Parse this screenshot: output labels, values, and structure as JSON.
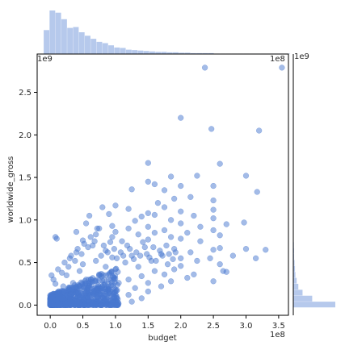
{
  "chart_data": {
    "type": "scatter",
    "title": "",
    "xlabel": "budget",
    "ylabel": "worldwide_gross",
    "x_units_label": "1e8",
    "y_units_label": "1e9",
    "xlim": [
      -0.2,
      3.65
    ],
    "ylim": [
      -0.12,
      2.95
    ],
    "xticks": [
      0.0,
      0.5,
      1.0,
      1.5,
      2.0,
      2.5,
      3.0,
      3.5
    ],
    "xtick_labels": [
      "0.0",
      "0.5",
      "1.0",
      "1.5",
      "2.0",
      "2.5",
      "3.0",
      "3.5"
    ],
    "yticks": [
      0.0,
      0.5,
      1.0,
      1.5,
      2.0,
      2.5
    ],
    "ytick_labels": [
      "0.0",
      "0.5",
      "1.0",
      "1.5",
      "2.0",
      "2.5"
    ],
    "grid": false,
    "point_color": "#4878d0",
    "series": [
      {
        "values_note": "x in units of 1e8 (budget), y in units of 1e9 (worldwide_gross)",
        "points": [
          [
            3.55,
            2.79
          ],
          [
            2.37,
            2.79
          ],
          [
            2.0,
            2.2
          ],
          [
            2.47,
            2.07
          ],
          [
            3.2,
            2.05
          ],
          [
            1.5,
            1.67
          ],
          [
            2.6,
            1.66
          ],
          [
            3.0,
            1.52
          ],
          [
            2.25,
            1.52
          ],
          [
            1.85,
            1.51
          ],
          [
            1.5,
            1.45
          ],
          [
            1.6,
            1.42
          ],
          [
            2.5,
            1.4
          ],
          [
            2.0,
            1.4
          ],
          [
            1.25,
            1.36
          ],
          [
            1.75,
            1.35
          ],
          [
            3.17,
            1.33
          ],
          [
            1.9,
            1.25
          ],
          [
            2.15,
            1.27
          ],
          [
            2.5,
            1.23
          ],
          [
            1.65,
            1.2
          ],
          [
            1.0,
            1.17
          ],
          [
            0.8,
            1.15
          ],
          [
            1.75,
            1.15
          ],
          [
            1.2,
            1.13
          ],
          [
            2.5,
            1.12
          ],
          [
            2.0,
            1.1
          ],
          [
            1.5,
            1.08
          ],
          [
            0.9,
            1.07
          ],
          [
            1.6,
            1.06
          ],
          [
            0.6,
            1.05
          ],
          [
            2.2,
            1.05
          ],
          [
            1.4,
            1.04
          ],
          [
            2.5,
            1.02
          ],
          [
            1.85,
            1.0
          ],
          [
            1.3,
            0.99
          ],
          [
            0.55,
            0.96
          ],
          [
            2.0,
            0.96
          ],
          [
            2.7,
            0.95
          ],
          [
            2.97,
            0.97
          ],
          [
            0.95,
            0.93
          ],
          [
            1.5,
            0.92
          ],
          [
            2.3,
            0.92
          ],
          [
            0.75,
            0.9
          ],
          [
            1.2,
            0.9
          ],
          [
            1.75,
            0.88
          ],
          [
            2.5,
            0.88
          ],
          [
            0.4,
            0.86
          ],
          [
            1.0,
            0.86
          ],
          [
            1.6,
            0.85
          ],
          [
            2.1,
            0.85
          ],
          [
            0.7,
            0.83
          ],
          [
            1.35,
            0.83
          ],
          [
            2.6,
            0.82
          ],
          [
            0.95,
            0.8
          ],
          [
            1.85,
            0.8
          ],
          [
            0.08,
            0.8
          ],
          [
            0.1,
            0.78
          ],
          [
            2.0,
            0.78
          ],
          [
            1.5,
            0.77
          ],
          [
            0.5,
            0.76
          ],
          [
            1.1,
            0.75
          ],
          [
            2.3,
            0.75
          ],
          [
            3.0,
            0.66
          ],
          [
            2.6,
            0.67
          ],
          [
            2.5,
            0.65
          ],
          [
            1.9,
            0.66
          ],
          [
            0.65,
            0.7
          ],
          [
            1.45,
            0.68
          ],
          [
            0.85,
            0.64
          ],
          [
            2.15,
            0.62
          ],
          [
            1.7,
            0.6
          ],
          [
            0.4,
            0.62
          ],
          [
            1.25,
            0.58
          ],
          [
            2.8,
            0.58
          ],
          [
            3.15,
            0.55
          ],
          [
            2.45,
            0.55
          ],
          [
            2.0,
            0.55
          ],
          [
            0.95,
            0.56
          ],
          [
            0.3,
            0.55
          ],
          [
            1.55,
            0.52
          ],
          [
            2.25,
            0.52
          ],
          [
            0.7,
            0.52
          ],
          [
            1.15,
            0.5
          ],
          [
            2.6,
            0.48
          ],
          [
            1.8,
            0.48
          ],
          [
            0.5,
            0.48
          ],
          [
            2.0,
            0.46
          ],
          [
            1.35,
            0.45
          ],
          [
            0.85,
            0.45
          ],
          [
            2.65,
            0.4
          ],
          [
            2.7,
            0.39
          ],
          [
            2.5,
            0.28
          ],
          [
            2.2,
            0.36
          ],
          [
            1.9,
            0.42
          ],
          [
            3.3,
            0.65
          ],
          [
            1.6,
            0.4
          ],
          [
            1.0,
            0.42
          ],
          [
            0.45,
            0.4
          ],
          [
            1.75,
            0.36
          ],
          [
            2.1,
            0.32
          ],
          [
            1.4,
            0.34
          ],
          [
            0.75,
            0.36
          ],
          [
            1.2,
            0.3
          ],
          [
            0.25,
            0.35
          ],
          [
            1.85,
            0.28
          ],
          [
            0.55,
            0.3
          ],
          [
            1.5,
            0.26
          ],
          [
            1.05,
            0.26
          ],
          [
            0.35,
            0.26
          ],
          [
            1.7,
            0.22
          ],
          [
            0.8,
            0.22
          ],
          [
            1.3,
            0.2
          ],
          [
            0.2,
            0.22
          ],
          [
            0.6,
            0.2
          ],
          [
            1.0,
            0.18
          ],
          [
            1.5,
            0.16
          ],
          [
            0.4,
            0.17
          ],
          [
            0.9,
            0.14
          ],
          [
            0.15,
            0.15
          ],
          [
            1.2,
            0.12
          ],
          [
            0.6,
            0.12
          ],
          [
            0.3,
            0.1
          ],
          [
            0.8,
            0.09
          ],
          [
            1.4,
            0.08
          ],
          [
            0.05,
            0.09
          ],
          [
            0.5,
            0.07
          ],
          [
            1.0,
            0.06
          ],
          [
            0.2,
            0.05
          ],
          [
            0.7,
            0.04
          ],
          [
            1.25,
            0.04
          ],
          [
            0.1,
            0.03
          ],
          [
            0.4,
            0.03
          ],
          [
            0.9,
            0.02
          ],
          [
            0.02,
            0.02
          ],
          [
            0.25,
            0.01
          ],
          [
            0.6,
            0.01
          ],
          [
            0.03,
            0.0
          ],
          [
            0.15,
            0.0
          ],
          [
            0.45,
            0.0
          ],
          [
            0.02,
            0.35
          ],
          [
            0.05,
            0.3
          ],
          [
            0.08,
            0.25
          ],
          [
            0.12,
            0.42
          ],
          [
            0.18,
            0.38
          ],
          [
            0.22,
            0.5
          ],
          [
            0.28,
            0.45
          ],
          [
            0.32,
            0.58
          ],
          [
            0.38,
            0.52
          ],
          [
            0.42,
            0.66
          ],
          [
            0.48,
            0.6
          ],
          [
            0.52,
            0.72
          ],
          [
            0.58,
            0.68
          ],
          [
            0.62,
            0.8
          ],
          [
            0.68,
            0.75
          ],
          [
            0.72,
            0.9
          ],
          [
            0.78,
            0.58
          ],
          [
            0.82,
            0.7
          ],
          [
            0.88,
            0.62
          ],
          [
            0.92,
            0.74
          ],
          [
            0.98,
            0.66
          ],
          [
            1.02,
            0.55
          ],
          [
            1.08,
            0.62
          ],
          [
            1.12,
            0.58
          ],
          [
            1.18,
            0.7
          ],
          [
            1.22,
            0.66
          ],
          [
            1.28,
            0.54
          ],
          [
            1.32,
            0.62
          ],
          [
            1.38,
            0.58
          ],
          [
            1.42,
            0.74
          ],
          [
            1.48,
            0.6
          ],
          [
            1.52,
            0.56
          ],
          [
            1.58,
            0.68
          ],
          [
            1.62,
            0.52
          ],
          [
            1.68,
            0.64
          ],
          [
            1.72,
            0.58
          ],
          [
            1.78,
            0.7
          ],
          [
            1.82,
            0.6
          ],
          [
            1.88,
            0.54
          ],
          [
            1.92,
            0.62
          ]
        ]
      }
    ],
    "marginal_x_histogram": {
      "bin_start": -0.1,
      "bin_width": 0.09,
      "relative_heights": [
        0.55,
        1.0,
        0.95,
        0.8,
        0.6,
        0.62,
        0.5,
        0.42,
        0.35,
        0.28,
        0.25,
        0.2,
        0.15,
        0.14,
        0.1,
        0.09,
        0.08,
        0.07,
        0.06,
        0.05,
        0.05,
        0.04,
        0.04,
        0.03,
        0.03,
        0.02,
        0.02,
        0.02,
        0.02,
        0.01,
        0.01,
        0.01,
        0.01,
        0.01,
        0.01,
        0.01,
        0.01,
        0.01,
        0.01,
        0.01,
        0.01,
        0.01
      ]
    },
    "marginal_y_histogram": {
      "bin_start": -0.03,
      "bin_width": 0.07,
      "relative_heights": [
        1.0,
        0.45,
        0.22,
        0.12,
        0.08,
        0.05,
        0.04,
        0.03,
        0.02,
        0.02,
        0.015,
        0.01,
        0.01,
        0.008,
        0.006,
        0.005,
        0.004,
        0.003,
        0.003,
        0.002,
        0.002,
        0.002,
        0.002,
        0.001,
        0.001,
        0.001,
        0.001,
        0.001,
        0.001,
        0.001,
        0.001,
        0.001,
        0.001,
        0.001,
        0.001,
        0.001,
        0.001,
        0.001,
        0.001,
        0.001,
        0.001,
        0.001
      ]
    }
  }
}
